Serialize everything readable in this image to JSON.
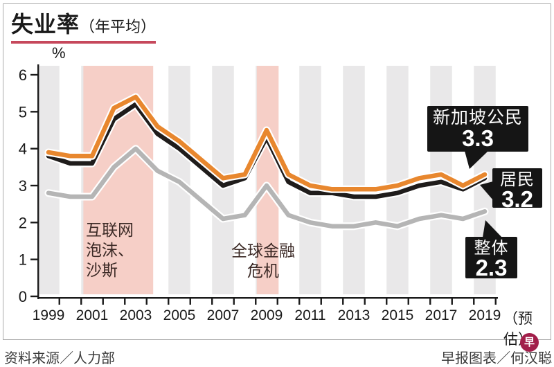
{
  "title": {
    "main": "失业率",
    "sub": "（年平均）"
  },
  "y_unit": "%",
  "footer": {
    "source": "资料来源／人力部",
    "credit": "早报图表／何汉聪",
    "logo_char": "早"
  },
  "annotations": {
    "crisis1": {
      "lines": [
        "互联网",
        "泡沫、",
        "沙斯"
      ]
    },
    "crisis2": {
      "lines": [
        "全球金融",
        "危机"
      ]
    }
  },
  "callouts": [
    {
      "label": "新加坡公民",
      "value": "3.3"
    },
    {
      "label": "居民",
      "value": "3.2"
    },
    {
      "label": "整体",
      "value": "2.3"
    }
  ],
  "colors": {
    "citizens": "#e8872e",
    "residents": "#1f1c1b",
    "overall": "#b5b5b5",
    "stripe": "#e9e8e9",
    "band": "#f6cfc7",
    "axis": "#1a1a1a",
    "underline": "#c6485c",
    "callout_bg": "#151515",
    "logo": "#a21f4a"
  },
  "chart_data": {
    "type": "line",
    "title": "失业率（年平均）",
    "ylabel": "%",
    "ylim": [
      0,
      6
    ],
    "y_ticks": [
      0,
      1,
      2,
      3,
      4,
      5,
      6
    ],
    "grid": false,
    "x": [
      1999,
      2000,
      2001,
      2002,
      2003,
      2004,
      2005,
      2006,
      2007,
      2008,
      2009,
      2010,
      2011,
      2012,
      2013,
      2014,
      2015,
      2016,
      2017,
      2018,
      2019
    ],
    "x_tick_labels": [
      "1999",
      "2001",
      "2003",
      "2005",
      "2007",
      "2009",
      "2011",
      "2013",
      "2015",
      "2017",
      "2019"
    ],
    "x_suffix": "（预估）",
    "series": [
      {
        "name": "新加坡公民",
        "color_key": "citizens",
        "values": [
          3.9,
          3.8,
          3.8,
          5.1,
          5.4,
          4.6,
          4.2,
          3.7,
          3.2,
          3.3,
          4.5,
          3.3,
          3.0,
          2.9,
          2.9,
          2.9,
          3.0,
          3.2,
          3.3,
          3.0,
          3.3
        ],
        "end_label": "3.3"
      },
      {
        "name": "居民",
        "color_key": "residents",
        "values": [
          3.8,
          3.6,
          3.6,
          4.8,
          5.2,
          4.4,
          4.0,
          3.5,
          3.0,
          3.2,
          4.3,
          3.1,
          2.8,
          2.8,
          2.7,
          2.7,
          2.8,
          3.0,
          3.1,
          2.9,
          3.2
        ],
        "end_label": "3.2"
      },
      {
        "name": "整体",
        "color_key": "overall",
        "values": [
          2.8,
          2.7,
          2.7,
          3.5,
          4.0,
          3.4,
          3.1,
          2.6,
          2.1,
          2.2,
          3.0,
          2.2,
          2.0,
          1.9,
          1.9,
          2.0,
          1.9,
          2.1,
          2.2,
          2.1,
          2.3
        ],
        "end_label": "2.3"
      }
    ],
    "stripe_years": [
      1999,
      2001,
      2003,
      2005,
      2007,
      2009,
      2011,
      2013,
      2015,
      2017,
      2019
    ],
    "highlight_bands": [
      {
        "from": 2000.6,
        "to": 2003.8,
        "label": "互联网泡沫、沙斯"
      },
      {
        "from": 2008.55,
        "to": 2009.55,
        "label": "全球金融危机"
      }
    ]
  }
}
